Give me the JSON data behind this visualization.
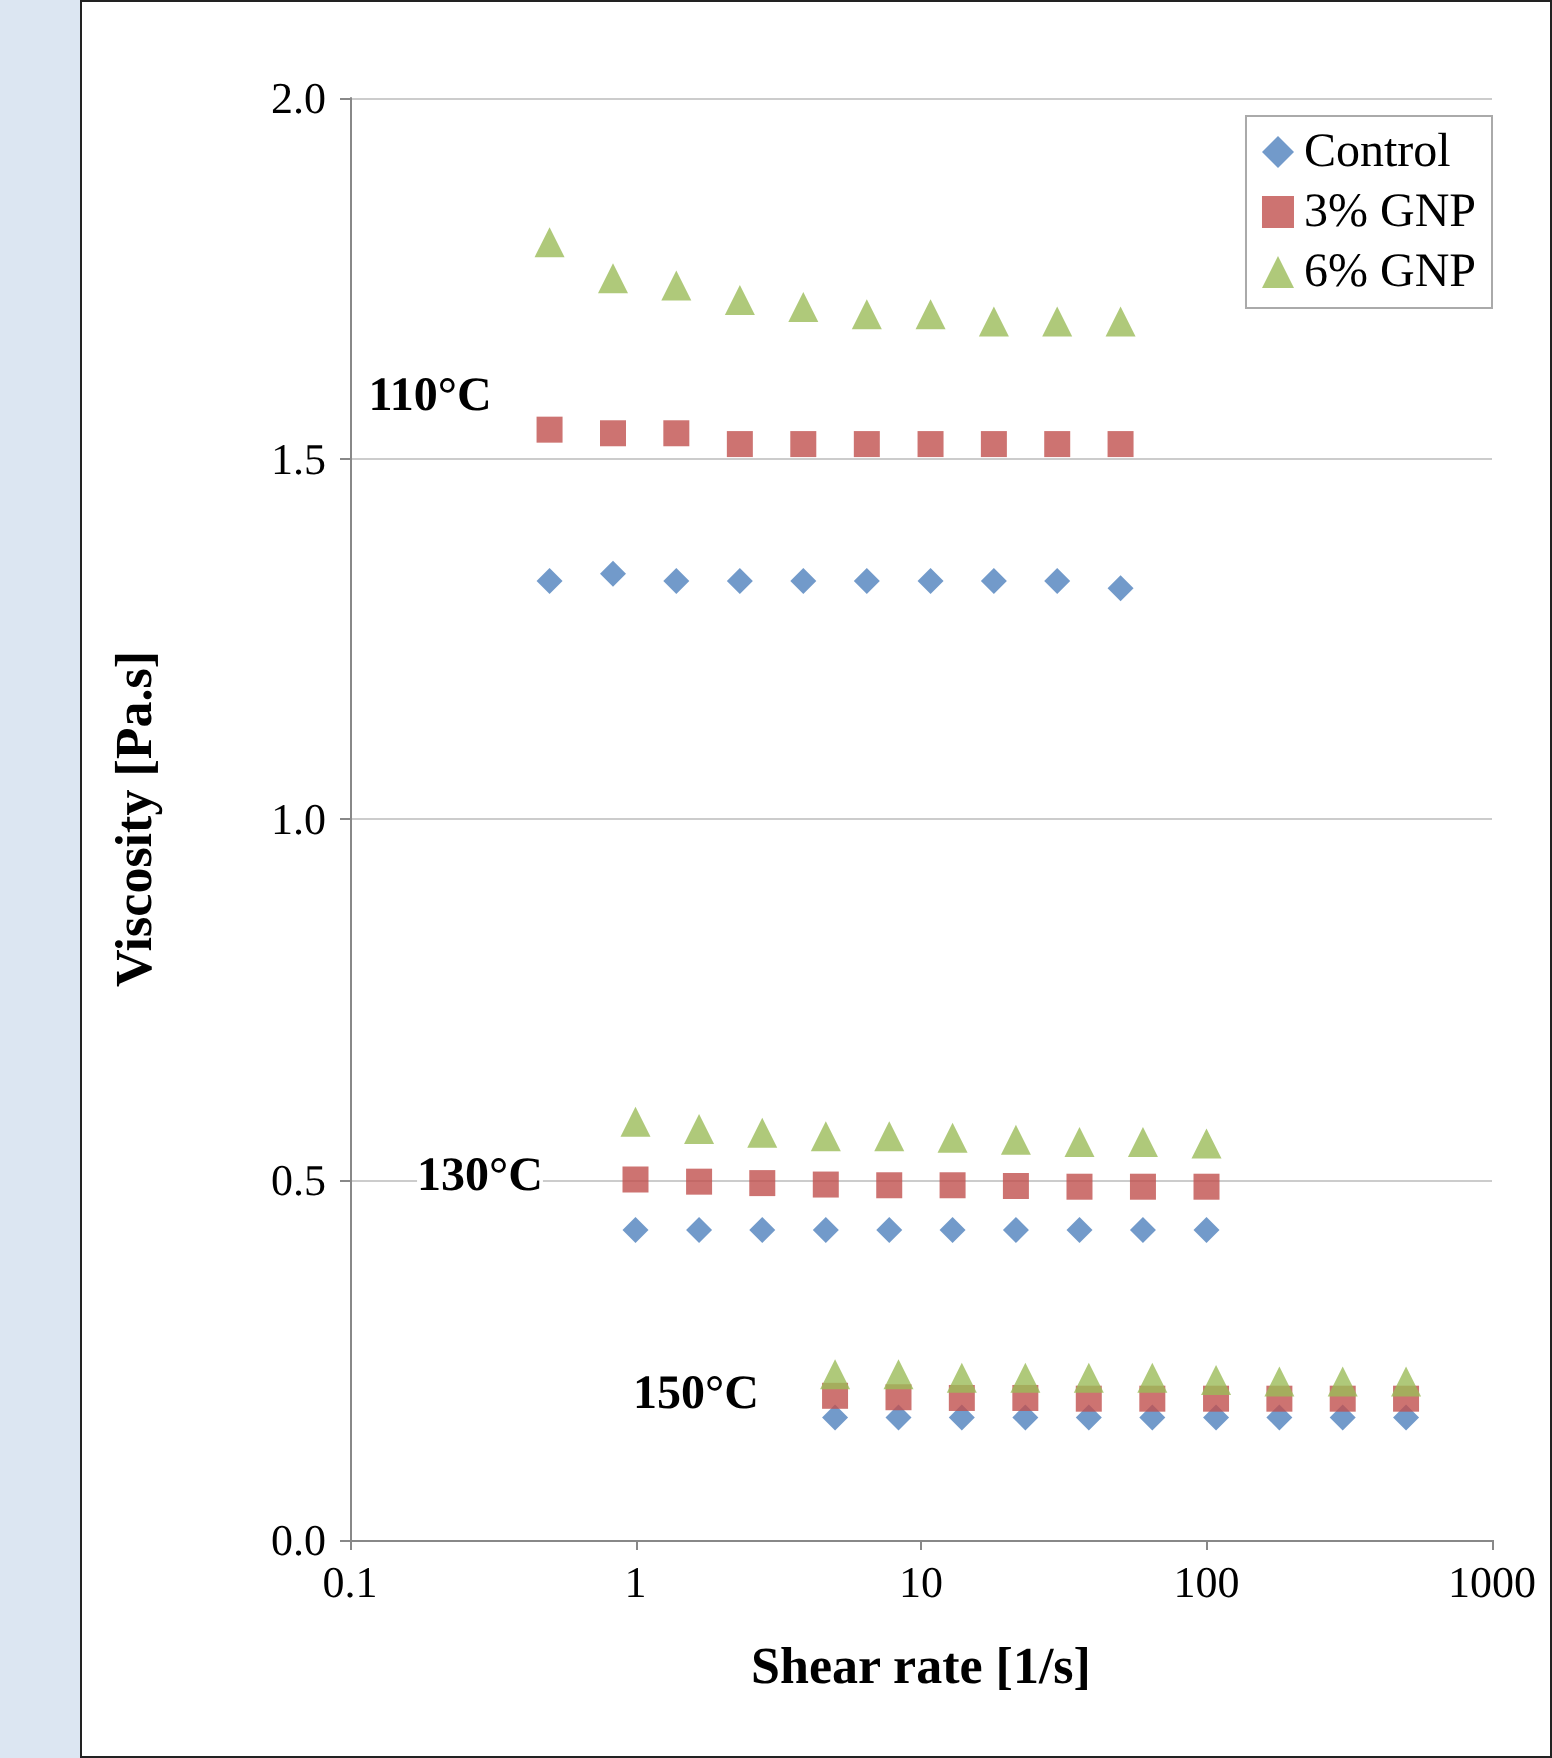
{
  "chart_data": {
    "type": "scatter",
    "xlabel": "Shear rate [1/s]",
    "ylabel": "Viscosity [Pa.s]",
    "log": "x",
    "grid": "y",
    "legend": "top right",
    "xlim": [
      0.1,
      1000
    ],
    "xticks": [
      0.1,
      1,
      10,
      100,
      1000
    ],
    "ylim": [
      0,
      2
    ],
    "yticks": [
      {
        "value": 0,
        "label": "0.0"
      },
      {
        "value": 0.5,
        "label": "0.5"
      },
      {
        "value": 1,
        "label": "1.0"
      },
      {
        "value": 1.5,
        "label": "1.5"
      },
      {
        "value": 2,
        "label": "2.0"
      }
    ],
    "annotations": [
      "110°C",
      "130°C",
      "150°C"
    ],
    "series": [
      {
        "name": "Control",
        "color": "#4f81bd",
        "marker": "diamond",
        "x": [
          0.5,
          0.834,
          1.39,
          2.32,
          3.87,
          6.46,
          10.8,
          18,
          30,
          50,
          1,
          1.67,
          2.78,
          4.64,
          7.74,
          12.9,
          21.5,
          35.9,
          59.9,
          100,
          5,
          8.34,
          13.9,
          23.2,
          38.7,
          64.6,
          108,
          180,
          300,
          500
        ],
        "values": [
          1.33,
          1.34,
          1.33,
          1.33,
          1.33,
          1.33,
          1.33,
          1.33,
          1.33,
          1.32,
          0.43,
          0.43,
          0.43,
          0.43,
          0.43,
          0.43,
          0.43,
          0.43,
          0.43,
          0.43,
          0.17,
          0.17,
          0.17,
          0.17,
          0.17,
          0.17,
          0.17,
          0.17,
          0.17,
          0.17
        ]
      },
      {
        "name": "3% GNP",
        "color": "#c0504d",
        "marker": "square",
        "x": [
          0.5,
          0.834,
          1.39,
          2.32,
          3.87,
          6.46,
          10.8,
          18,
          30,
          50,
          1,
          1.67,
          2.78,
          4.64,
          7.74,
          12.9,
          21.5,
          35.9,
          59.9,
          100,
          5,
          8.34,
          13.9,
          23.2,
          38.7,
          64.6,
          108,
          180,
          300,
          500
        ],
        "values": [
          1.54,
          1.535,
          1.535,
          1.52,
          1.52,
          1.52,
          1.52,
          1.52,
          1.52,
          1.52,
          0.5,
          0.497,
          0.495,
          0.493,
          0.492,
          0.492,
          0.491,
          0.49,
          0.49,
          0.49,
          0.2,
          0.198,
          0.197,
          0.197,
          0.196,
          0.196,
          0.196,
          0.196,
          0.196,
          0.196
        ]
      },
      {
        "name": "6% GNP",
        "color": "#9bbb59",
        "marker": "triangle",
        "x": [
          0.5,
          0.834,
          1.39,
          2.32,
          3.87,
          6.46,
          10.8,
          18,
          30,
          50,
          1,
          1.67,
          2.78,
          4.64,
          7.74,
          12.9,
          21.5,
          35.9,
          59.9,
          100,
          5,
          8.34,
          13.9,
          23.2,
          38.7,
          64.6,
          108,
          180,
          300,
          500
        ],
        "values": [
          1.8,
          1.75,
          1.74,
          1.72,
          1.71,
          1.7,
          1.7,
          1.69,
          1.69,
          1.69,
          0.58,
          0.57,
          0.565,
          0.56,
          0.56,
          0.558,
          0.555,
          0.552,
          0.552,
          0.55,
          0.23,
          0.23,
          0.225,
          0.225,
          0.225,
          0.225,
          0.222,
          0.22,
          0.22,
          0.22
        ]
      }
    ]
  }
}
